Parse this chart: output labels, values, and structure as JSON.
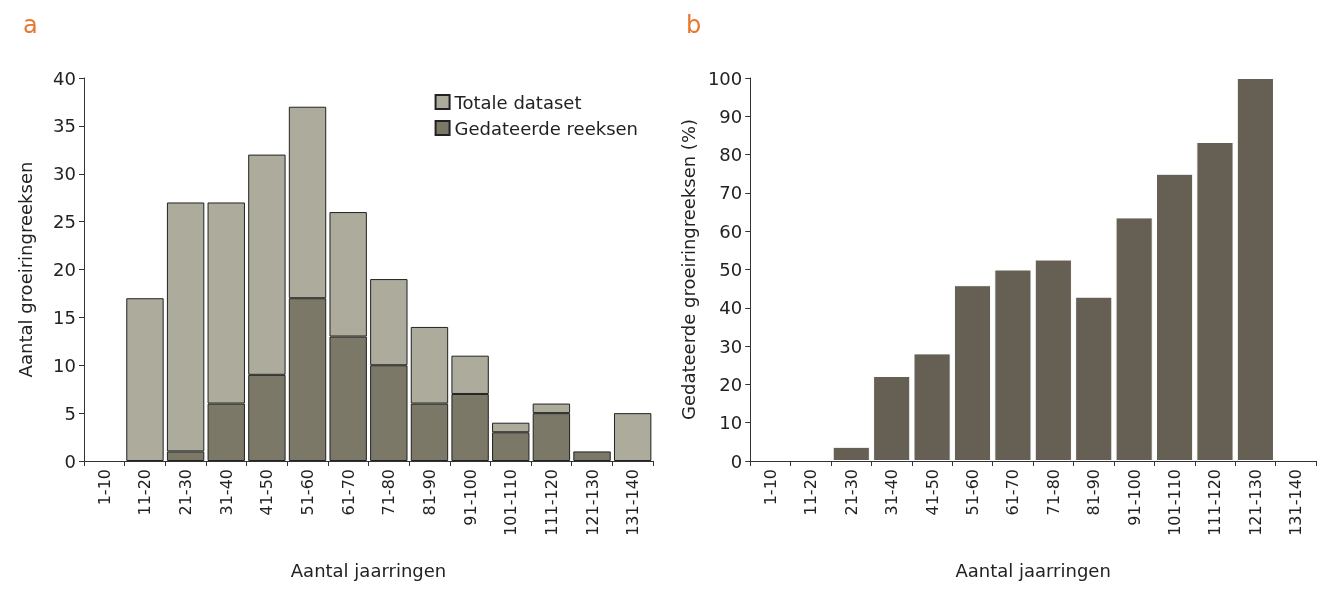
{
  "chart_data": [
    {
      "type": "bar",
      "title": "a",
      "xlabel": "Aantal jaarringen",
      "ylabel": "Aantal groeiringreeksen",
      "stacked": true,
      "legend": "top right",
      "grid": false,
      "categories": [
        "1-10",
        "11-20",
        "21-30",
        "31-40",
        "41-50",
        "51-60",
        "61-70",
        "71-80",
        "81-90",
        "91-100",
        "101-110",
        "111-120",
        "121-130",
        "131-140"
      ],
      "ylim": [
        0,
        40
      ],
      "yticks": [
        0,
        5,
        10,
        15,
        20,
        25,
        30,
        35,
        40
      ],
      "series": [
        {
          "name": "Gedateerde reeksen",
          "color": "#7b7868",
          "values": [
            0,
            0,
            1,
            6,
            9,
            17,
            13,
            10,
            6,
            7,
            3,
            5,
            1,
            0
          ]
        },
        {
          "name": "Totale dataset",
          "color": "#adab9b",
          "values": [
            0,
            17,
            26,
            21,
            23,
            20,
            13,
            9,
            8,
            4,
            1,
            1,
            0,
            5
          ]
        }
      ]
    },
    {
      "type": "bar",
      "title": "b",
      "xlabel": "Aantal jaarringen",
      "ylabel": "Gedateerde groeiringreeksen (%)",
      "grid": false,
      "categories": [
        "1-10",
        "11-20",
        "21-30",
        "31-40",
        "41-50",
        "51-60",
        "61-70",
        "71-80",
        "81-90",
        "91-100",
        "101-110",
        "111-120",
        "121-130",
        "131-140"
      ],
      "ylim": [
        0,
        100
      ],
      "yticks": [
        0,
        10,
        20,
        30,
        40,
        50,
        60,
        70,
        80,
        90,
        100
      ],
      "series": [
        {
          "color": "#665f54",
          "values": [
            0,
            0,
            3.7,
            22.2,
            28.1,
            45.9,
            50,
            52.6,
            42.9,
            63.6,
            75,
            83.3,
            100,
            null
          ]
        }
      ]
    }
  ]
}
